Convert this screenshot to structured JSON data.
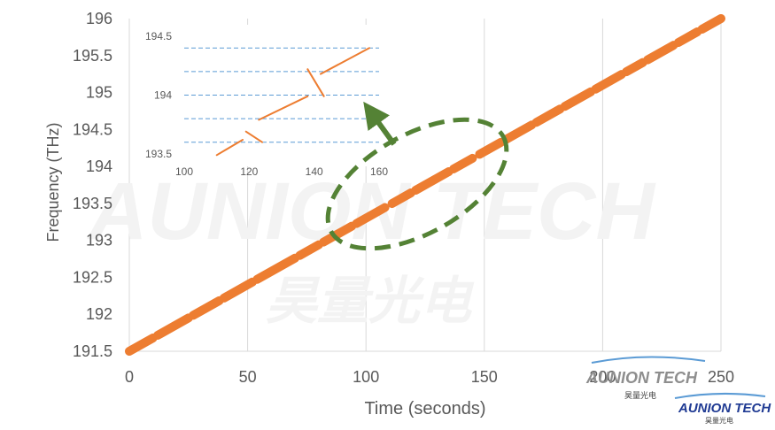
{
  "chart_data": [
    {
      "type": "line",
      "xlabel": "Time (seconds)",
      "ylabel": "Frequency (THz)",
      "xlim": [
        0,
        250
      ],
      "ylim": [
        191.5,
        196
      ],
      "x_ticks": [
        "0",
        "50",
        "100",
        "150",
        "200",
        "250"
      ],
      "y_ticks": [
        "191.5",
        "192",
        "192.5",
        "193",
        "193.5",
        "194",
        "194.5",
        "195",
        "195.5",
        "196"
      ],
      "grid": "vertical",
      "series": [
        {
          "color": "#ED7D31",
          "x": [
            0,
            250
          ],
          "y": [
            191.5,
            196
          ],
          "style": "dashed-thick",
          "segments": [
            [
              0,
              10
            ],
            [
              12,
              25
            ],
            [
              27,
              38
            ],
            [
              40,
              52
            ],
            [
              54,
              70
            ],
            [
              72,
              80
            ],
            [
              82,
              94
            ],
            [
              96,
              108
            ],
            [
              111,
              119
            ],
            [
              121,
              135
            ],
            [
              137,
              145
            ],
            [
              148,
              157
            ],
            [
              159,
              170
            ],
            [
              172,
              182
            ],
            [
              184,
              195
            ],
            [
              197,
              208
            ],
            [
              210,
              217
            ],
            [
              219,
              230
            ],
            [
              232,
              240
            ],
            [
              242,
              250
            ]
          ]
        }
      ]
    },
    {
      "type": "line",
      "xlim": [
        100,
        160
      ],
      "ylim": [
        193.5,
        194.5
      ],
      "x_ticks": [
        "100",
        "120",
        "140",
        "160"
      ],
      "y_ticks": [
        "193.5",
        "194",
        "194.5"
      ],
      "ref_lines": [
        193.6,
        193.8,
        194.0,
        194.2,
        194.4
      ],
      "series": [
        {
          "color": "#ED7D31",
          "segments": [
            [
              [
                110,
                193.49
              ],
              [
                118,
                193.62
              ]
            ],
            [
              [
                119,
                193.69
              ],
              [
                124,
                193.6
              ]
            ],
            [
              [
                123,
                193.79
              ],
              [
                138,
                193.99
              ]
            ],
            [
              [
                138,
                194.22
              ],
              [
                143,
                193.99
              ]
            ],
            [
              [
                142,
                194.18
              ],
              [
                157,
                194.4
              ]
            ]
          ]
        }
      ]
    }
  ],
  "annotation": {
    "ellipse_color": "#548235",
    "arrow_color": "#548235"
  },
  "watermark": {
    "brand": "AUNION TECH",
    "cn": "昊量光电"
  }
}
